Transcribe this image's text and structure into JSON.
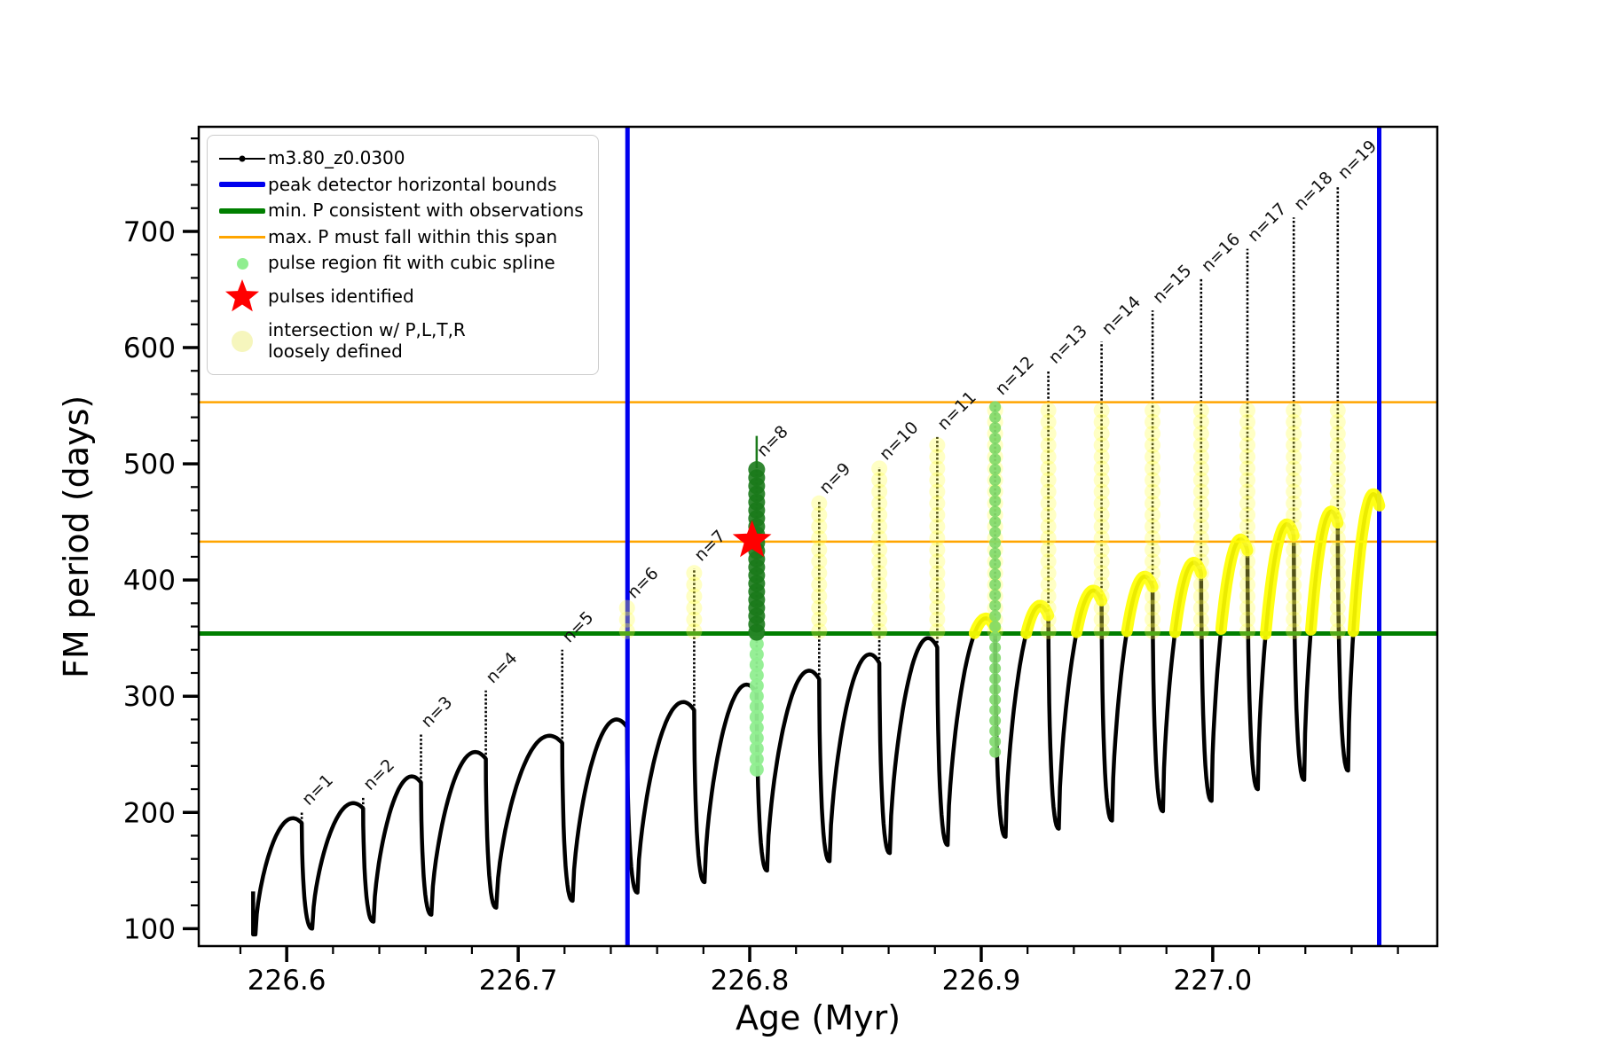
{
  "figure": {
    "background": "#ffffff"
  },
  "axes": {
    "xlabel": "Age (Myr)",
    "ylabel": "FM period (days)"
  },
  "colors": {
    "curve": "#000000",
    "blue_bound": "#0000ee",
    "green_min_p": "#007f00",
    "orange_span": "#ffa500",
    "pulse_region_light_green": "#90ee90",
    "pulse_region_dark_green": "#1b7a1b",
    "loose_green": "#7fd96b",
    "yellow_intersection": "#ffff00",
    "pale_yellow": "#f6f6bd",
    "star_red": "#ff0000"
  },
  "legend": {
    "items": [
      {
        "marker": "line-dot",
        "label": "m3.80_z0.0300"
      },
      {
        "marker": "thick-line-blue",
        "label": "peak detector horizontal bounds"
      },
      {
        "marker": "thick-line-green",
        "label": "min. P consistent with observations"
      },
      {
        "marker": "line-orange",
        "label": "max. P must fall within this span"
      },
      {
        "marker": "dot-lightgreen",
        "label": "pulse region fit with cubic spline"
      },
      {
        "marker": "star-red",
        "label": "pulses identified"
      },
      {
        "marker": "dot-paleyellow",
        "label": "intersection w/ P,L,T,R\nloosely defined"
      }
    ]
  },
  "chart_data": {
    "type": "line",
    "series_label": "m3.80_z0.0300",
    "title": "",
    "xlabel": "Age (Myr)",
    "ylabel": "FM period (days)",
    "xlim": [
      226.562,
      227.097
    ],
    "ylim": [
      85,
      790
    ],
    "xticks": [
      226.6,
      226.7,
      226.8,
      226.9,
      227.0
    ],
    "yticks": [
      100,
      200,
      300,
      400,
      500,
      600,
      700
    ],
    "x_minor_step": 0.02,
    "y_minor_step": 20,
    "grid": false,
    "legend_position": "upper left",
    "curve_start": {
      "x": 226.5855,
      "v_top": 132,
      "v_bottom": 95
    },
    "pulses": [
      {
        "n": 1,
        "label": "n=1",
        "x_min": 226.5865,
        "v_min": 95,
        "x_spike": 226.6065,
        "hump_peak": 195,
        "spike_top": 200
      },
      {
        "n": 2,
        "label": "n=2",
        "x_min": 226.611,
        "v_min": 100,
        "x_spike": 226.633,
        "hump_peak": 208,
        "spike_top": 213
      },
      {
        "n": 3,
        "label": "n=3",
        "x_min": 226.6375,
        "v_min": 106,
        "x_spike": 226.658,
        "hump_peak": 231,
        "spike_top": 267
      },
      {
        "n": 4,
        "label": "n=4",
        "x_min": 226.6625,
        "v_min": 112,
        "x_spike": 226.686,
        "hump_peak": 252,
        "spike_top": 305
      },
      {
        "n": 5,
        "label": "n=5",
        "x_min": 226.6905,
        "v_min": 118,
        "x_spike": 226.719,
        "hump_peak": 266,
        "spike_top": 340
      },
      {
        "n": 6,
        "label": "n=6",
        "x_min": 226.7235,
        "v_min": 124,
        "x_spike": 226.747,
        "hump_peak": 280,
        "spike_top": 378
      },
      {
        "n": 7,
        "label": "n=7",
        "x_min": 226.7515,
        "v_min": 131,
        "x_spike": 226.776,
        "hump_peak": 295,
        "spike_top": 410
      },
      {
        "n": 8,
        "label": "n=8",
        "x_min": 226.7805,
        "v_min": 140,
        "x_spike": 226.803,
        "hump_peak": 310,
        "spike_top": 500
      },
      {
        "n": 9,
        "label": "n=9",
        "x_min": 226.8075,
        "v_min": 150,
        "x_spike": 226.83,
        "hump_peak": 322,
        "spike_top": 468
      },
      {
        "n": 10,
        "label": "n=10",
        "x_min": 226.8345,
        "v_min": 158,
        "x_spike": 226.856,
        "hump_peak": 336,
        "spike_top": 497
      },
      {
        "n": 11,
        "label": "n=11",
        "x_min": 226.8605,
        "v_min": 165,
        "x_spike": 226.881,
        "hump_peak": 350,
        "spike_top": 523
      },
      {
        "n": 12,
        "label": "n=12",
        "x_min": 226.8855,
        "v_min": 172,
        "x_spike": 226.906,
        "hump_peak": 367,
        "spike_top": 553
      },
      {
        "n": 13,
        "label": "n=13",
        "x_min": 226.9105,
        "v_min": 179,
        "x_spike": 226.929,
        "hump_peak": 378,
        "spike_top": 580
      },
      {
        "n": 14,
        "label": "n=14",
        "x_min": 226.9335,
        "v_min": 186,
        "x_spike": 226.952,
        "hump_peak": 391,
        "spike_top": 605
      },
      {
        "n": 15,
        "label": "n=15",
        "x_min": 226.9565,
        "v_min": 193,
        "x_spike": 226.974,
        "hump_peak": 403,
        "spike_top": 632
      },
      {
        "n": 16,
        "label": "n=16",
        "x_min": 226.9785,
        "v_min": 201,
        "x_spike": 226.995,
        "hump_peak": 415,
        "spike_top": 659
      },
      {
        "n": 17,
        "label": "n=17",
        "x_min": 226.9995,
        "v_min": 210,
        "x_spike": 227.015,
        "hump_peak": 435,
        "spike_top": 685
      },
      {
        "n": 18,
        "label": "n=18",
        "x_min": 227.0195,
        "v_min": 220,
        "x_spike": 227.035,
        "hump_peak": 448,
        "spike_top": 712
      },
      {
        "n": 19,
        "label": "n=19",
        "x_min": 227.0395,
        "v_min": 228,
        "x_spike": 227.054,
        "hump_peak": 459,
        "spike_top": 739
      },
      {
        "n": 20,
        "label": null,
        "x_min": 227.0585,
        "v_min": 236,
        "x_spike": 227.072,
        "hump_peak": 474,
        "spike_top": null
      }
    ],
    "peak_detector_bounds_x": [
      226.7472,
      227.0719
    ],
    "min_p_consistent": 354,
    "max_p_span": [
      433,
      553
    ],
    "yellow_intersection_v_range": [
      355,
      553
    ],
    "yellow_marked_spikes": [
      6,
      7,
      9,
      10,
      11,
      12,
      13,
      14,
      15,
      16,
      17,
      18,
      19
    ],
    "pulse_region": {
      "x": 226.803,
      "light_green_v_range": [
        237,
        354
      ],
      "dark_green_v_range": [
        355,
        497
      ],
      "stem_top_v": 524
    },
    "loose_green_spike": {
      "x": 226.906,
      "v_range": [
        252,
        553
      ]
    },
    "identified_pulse": {
      "x": 226.801,
      "v": 434
    }
  }
}
